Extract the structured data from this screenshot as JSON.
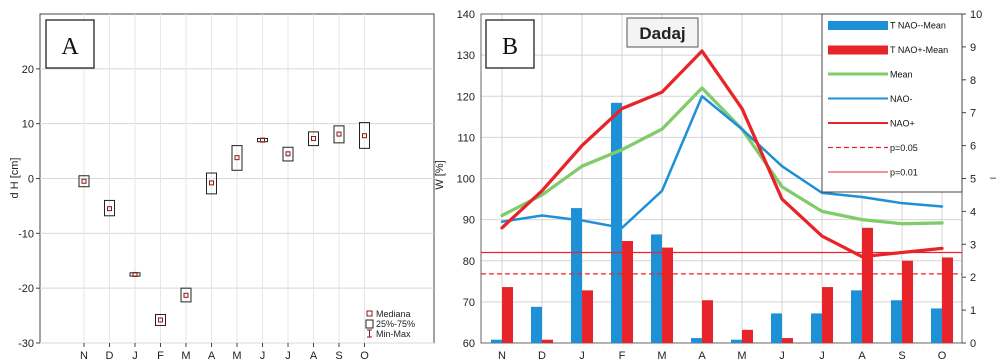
{
  "chart_data": [
    {
      "panel_label": "A",
      "type": "box",
      "ylabel": "d H [cm]",
      "categories": [
        "N",
        "D",
        "J",
        "F",
        "M",
        "A",
        "M",
        "J",
        "J",
        "A",
        "S",
        "O"
      ],
      "y_ticks": [
        20,
        10,
        0,
        -10,
        -20,
        -30
      ],
      "ylim": [
        -30,
        30
      ],
      "median": [
        -0.5,
        -5.5,
        -17.5,
        -25.8,
        -21.3,
        -0.8,
        3.8,
        7.0,
        4.5,
        7.3,
        8.1,
        7.8
      ],
      "q1": [
        -1.5,
        -6.8,
        -17.8,
        -26.8,
        -22.5,
        -2.8,
        1.5,
        6.7,
        3.2,
        6.0,
        6.5,
        5.5
      ],
      "q3": [
        0.5,
        -4.0,
        -17.2,
        -24.8,
        -20.0,
        1.0,
        6.0,
        7.3,
        5.7,
        8.5,
        9.6,
        10.2
      ],
      "legend": {
        "median": "Mediana",
        "box": "25%-75%",
        "whisker": "Min-Max"
      },
      "color": "#8b1a1a",
      "grid": true
    },
    {
      "panel_label": "B",
      "type": "bar+line",
      "title": "Dadaj",
      "categories": [
        "N",
        "D",
        "J",
        "F",
        "M",
        "A",
        "M",
        "J",
        "J",
        "A",
        "S",
        "O"
      ],
      "ylabel": "W [%]",
      "y_ticks": [
        60,
        70,
        80,
        90,
        100,
        110,
        120,
        130,
        140
      ],
      "ylim": [
        60,
        140
      ],
      "y2_ticks": [
        0,
        1,
        2,
        3,
        4,
        5,
        6,
        7,
        8,
        9,
        10
      ],
      "y2lim": [
        0,
        10
      ],
      "bars": [
        {
          "name": "T NAO--Mean",
          "color": "#1e90d6",
          "values": [
            0.1,
            1.1,
            4.1,
            7.3,
            3.3,
            0.15,
            0.1,
            0.9,
            0.9,
            1.6,
            1.3,
            1.05
          ]
        },
        {
          "name": "T NAO+-Mean",
          "color": "#e8242b",
          "values": [
            1.7,
            0.1,
            1.6,
            3.1,
            2.9,
            1.3,
            0.4,
            0.15,
            1.7,
            3.5,
            2.5,
            2.6
          ]
        }
      ],
      "lines": [
        {
          "name": "Mean",
          "color": "#7fcc6a",
          "dash": "solid",
          "values": [
            91,
            96,
            103,
            107,
            112,
            122,
            112,
            98,
            92,
            90,
            89,
            89.2
          ]
        },
        {
          "name": "NAO-",
          "color": "#1e90d6",
          "dash": "solid",
          "values": [
            89.5,
            91,
            89.8,
            88,
            97,
            120,
            112,
            103,
            96.5,
            95.5,
            94,
            93.2
          ]
        },
        {
          "name": "NAO+",
          "color": "#e8242b",
          "dash": "solid",
          "values": [
            88,
            97,
            108,
            117,
            121,
            131,
            117,
            95,
            86,
            81,
            82,
            83
          ]
        }
      ],
      "reference_lines": [
        {
          "name": "p=0.05",
          "color": "#e8242b",
          "dash": "dashed",
          "y2": 2.1
        },
        {
          "name": "p=0.01",
          "color": "#e8242b",
          "dash": "solid",
          "y2": 2.75
        }
      ],
      "legend_order": [
        "T NAO--Mean",
        "T NAO+-Mean",
        "Mean",
        "NAO-",
        "NAO+",
        "p=0.05",
        "p=0.01"
      ],
      "legend_position": "top-right",
      "grid": true
    }
  ]
}
